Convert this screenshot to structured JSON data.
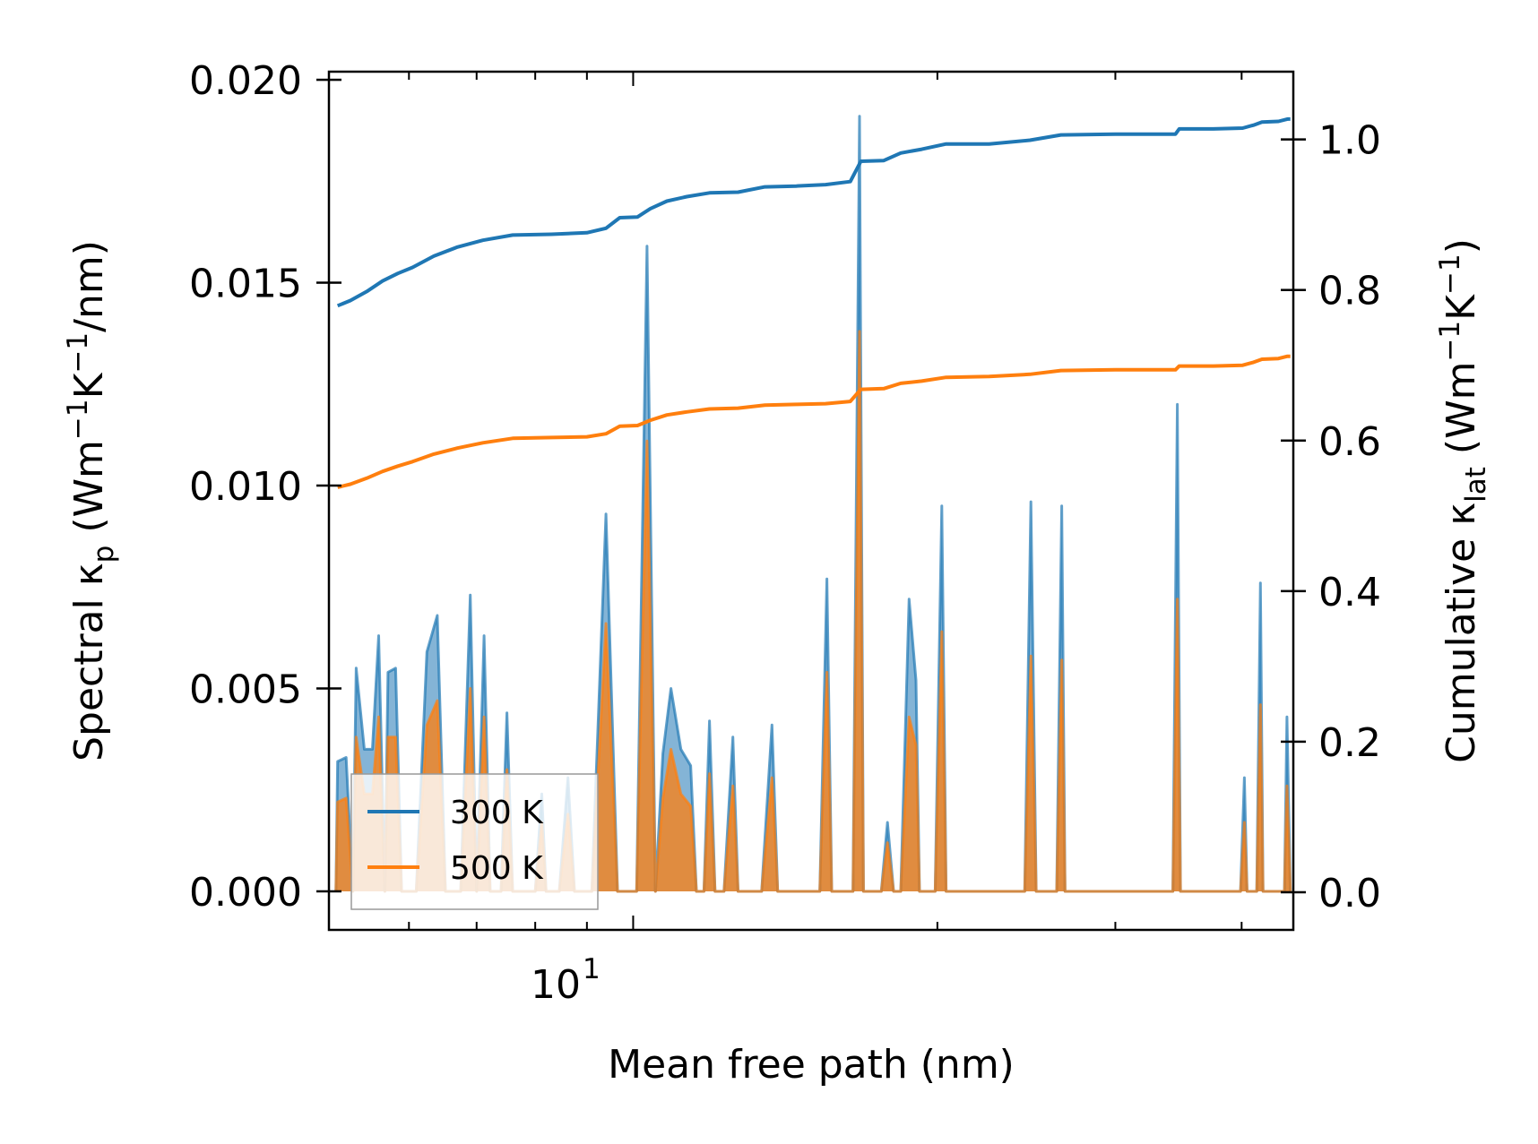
{
  "chart_data": {
    "type": "line",
    "x_scale": "log",
    "xlabel": "Mean free path (nm)",
    "ylabel_left": {
      "prefix": "Spectral κ",
      "sub": "p",
      "units_open": " (Wm",
      "exp1": "−1",
      "mid": "K",
      "exp2": "−1",
      "units_close": "/nm)"
    },
    "ylabel_right": {
      "prefix": "Cumulative κ",
      "sub": "lat",
      "units_open": " (Wm",
      "exp1": "−1",
      "mid": "K",
      "exp2": "−1",
      "units_close": ")"
    },
    "xlim": [
      5.0,
      45.0
    ],
    "ylim_left": [
      -0.00095,
      0.0202
    ],
    "ylim_right": [
      -0.05,
      1.09
    ],
    "x_tick_label": {
      "base": "10",
      "exp": "1",
      "value": 10
    },
    "y_left_ticks": [
      0.0,
      0.005,
      0.01,
      0.015,
      0.02
    ],
    "y_left_tick_labels": [
      "0.000",
      "0.005",
      "0.010",
      "0.015",
      "0.020"
    ],
    "y_right_ticks": [
      0.0,
      0.2,
      0.4,
      0.6,
      0.8,
      1.0
    ],
    "y_right_tick_labels": [
      "0.0",
      "0.2",
      "0.4",
      "0.6",
      "0.8",
      "1.0"
    ],
    "legend": {
      "position": "lower-left",
      "entries": [
        "300 K",
        "500 K"
      ]
    },
    "colors": {
      "series_300K": "#1f77b4",
      "series_500K": "#ff7f0e"
    },
    "series": [
      {
        "name": "300 K",
        "role": "spectral",
        "axis": "left",
        "points": [
          [
            5.08,
            0.0
          ],
          [
            5.1,
            0.0032
          ],
          [
            5.2,
            0.0033
          ],
          [
            5.28,
            0.0
          ],
          [
            5.32,
            0.0055
          ],
          [
            5.42,
            0.0035
          ],
          [
            5.52,
            0.0035
          ],
          [
            5.6,
            0.0063
          ],
          [
            5.68,
            0.0
          ],
          [
            5.72,
            0.0054
          ],
          [
            5.82,
            0.0055
          ],
          [
            5.9,
            0.0
          ],
          [
            6.1,
            0.0
          ],
          [
            6.25,
            0.0059
          ],
          [
            6.4,
            0.0068
          ],
          [
            6.52,
            0.0
          ],
          [
            6.62,
            0.0
          ],
          [
            6.75,
            0.0
          ],
          [
            6.9,
            0.0073
          ],
          [
            7.0,
            0.0
          ],
          [
            7.12,
            0.0063
          ],
          [
            7.22,
            0.0
          ],
          [
            7.4,
            0.0
          ],
          [
            7.5,
            0.0044
          ],
          [
            7.6,
            0.0
          ],
          [
            7.8,
            0.0
          ],
          [
            8.0,
            0.0
          ],
          [
            8.12,
            0.0024
          ],
          [
            8.2,
            0.0
          ],
          [
            8.45,
            0.0
          ],
          [
            8.62,
            0.0028
          ],
          [
            8.75,
            0.0
          ],
          [
            9.1,
            0.0
          ],
          [
            9.4,
            0.0093
          ],
          [
            9.65,
            0.0
          ],
          [
            10.08,
            0.0
          ],
          [
            10.32,
            0.0159
          ],
          [
            10.52,
            0.0
          ],
          [
            10.7,
            0.0034
          ],
          [
            10.9,
            0.005
          ],
          [
            11.15,
            0.0035
          ],
          [
            11.4,
            0.0031
          ],
          [
            11.55,
            0.0
          ],
          [
            11.75,
            0.0
          ],
          [
            11.9,
            0.0042
          ],
          [
            12.05,
            0.0
          ],
          [
            12.3,
            0.0
          ],
          [
            12.55,
            0.0038
          ],
          [
            12.7,
            0.0
          ],
          [
            13.4,
            0.0
          ],
          [
            13.72,
            0.0041
          ],
          [
            13.9,
            0.0
          ],
          [
            15.3,
            0.0
          ],
          [
            15.55,
            0.0077
          ],
          [
            15.72,
            0.0
          ],
          [
            16.5,
            0.0
          ],
          [
            16.75,
            0.0191
          ],
          [
            16.9,
            0.0
          ],
          [
            17.6,
            0.0
          ],
          [
            17.85,
            0.0017
          ],
          [
            18.1,
            0.0
          ],
          [
            18.4,
            0.0
          ],
          [
            18.75,
            0.0072
          ],
          [
            19.05,
            0.0052
          ],
          [
            19.2,
            0.0
          ],
          [
            19.9,
            0.0
          ],
          [
            20.2,
            0.0095
          ],
          [
            20.4,
            0.0
          ],
          [
            24.4,
            0.0
          ],
          [
            24.75,
            0.0096
          ],
          [
            25.05,
            0.0
          ],
          [
            26.25,
            0.0
          ],
          [
            26.55,
            0.0095
          ],
          [
            26.75,
            0.0
          ],
          [
            34.2,
            0.0
          ],
          [
            34.55,
            0.012
          ],
          [
            34.8,
            0.0
          ],
          [
            39.9,
            0.0
          ],
          [
            40.25,
            0.0028
          ],
          [
            40.5,
            0.0
          ],
          [
            41.4,
            0.0
          ],
          [
            41.75,
            0.0076
          ],
          [
            42.0,
            0.0
          ],
          [
            44.1,
            0.0
          ],
          [
            44.35,
            0.0043
          ],
          [
            44.7,
            0.0
          ]
        ]
      },
      {
        "name": "500 K",
        "role": "spectral",
        "axis": "left",
        "points": [
          [
            5.08,
            0.0
          ],
          [
            5.1,
            0.0022
          ],
          [
            5.2,
            0.0023
          ],
          [
            5.28,
            0.0
          ],
          [
            5.32,
            0.0038
          ],
          [
            5.42,
            0.0024
          ],
          [
            5.52,
            0.0024
          ],
          [
            5.6,
            0.0043
          ],
          [
            5.68,
            0.0
          ],
          [
            5.72,
            0.0038
          ],
          [
            5.82,
            0.0038
          ],
          [
            5.9,
            0.0
          ],
          [
            6.1,
            0.0
          ],
          [
            6.25,
            0.0041
          ],
          [
            6.4,
            0.0047
          ],
          [
            6.52,
            0.0
          ],
          [
            6.62,
            0.0
          ],
          [
            6.75,
            0.0
          ],
          [
            6.9,
            0.005
          ],
          [
            7.0,
            0.0
          ],
          [
            7.12,
            0.0043
          ],
          [
            7.22,
            0.0
          ],
          [
            7.4,
            0.0
          ],
          [
            7.5,
            0.003
          ],
          [
            7.6,
            0.0
          ],
          [
            7.8,
            0.0
          ],
          [
            8.0,
            0.0
          ],
          [
            8.12,
            0.0017
          ],
          [
            8.2,
            0.0
          ],
          [
            8.45,
            0.0
          ],
          [
            8.62,
            0.0019
          ],
          [
            8.75,
            0.0
          ],
          [
            9.1,
            0.0
          ],
          [
            9.4,
            0.0066
          ],
          [
            9.65,
            0.0
          ],
          [
            10.08,
            0.0
          ],
          [
            10.32,
            0.0111
          ],
          [
            10.52,
            0.0
          ],
          [
            10.7,
            0.0023
          ],
          [
            10.9,
            0.0035
          ],
          [
            11.15,
            0.0024
          ],
          [
            11.4,
            0.0021
          ],
          [
            11.55,
            0.0
          ],
          [
            11.75,
            0.0
          ],
          [
            11.9,
            0.0029
          ],
          [
            12.05,
            0.0
          ],
          [
            12.3,
            0.0
          ],
          [
            12.55,
            0.0026
          ],
          [
            12.7,
            0.0
          ],
          [
            13.4,
            0.0
          ],
          [
            13.72,
            0.0028
          ],
          [
            13.9,
            0.0
          ],
          [
            15.3,
            0.0
          ],
          [
            15.55,
            0.0054
          ],
          [
            15.72,
            0.0
          ],
          [
            16.5,
            0.0
          ],
          [
            16.75,
            0.0138
          ],
          [
            16.9,
            0.0
          ],
          [
            17.6,
            0.0
          ],
          [
            17.85,
            0.0012
          ],
          [
            18.1,
            0.0
          ],
          [
            18.4,
            0.0
          ],
          [
            18.75,
            0.0043
          ],
          [
            19.05,
            0.0036
          ],
          [
            19.2,
            0.0
          ],
          [
            19.9,
            0.0
          ],
          [
            20.2,
            0.0064
          ],
          [
            20.4,
            0.0
          ],
          [
            24.4,
            0.0
          ],
          [
            24.75,
            0.0058
          ],
          [
            25.05,
            0.0
          ],
          [
            26.25,
            0.0
          ],
          [
            26.55,
            0.0057
          ],
          [
            26.75,
            0.0
          ],
          [
            34.2,
            0.0
          ],
          [
            34.55,
            0.0072
          ],
          [
            34.8,
            0.0
          ],
          [
            39.9,
            0.0
          ],
          [
            40.25,
            0.0017
          ],
          [
            40.5,
            0.0
          ],
          [
            41.4,
            0.0
          ],
          [
            41.75,
            0.0046
          ],
          [
            42.0,
            0.0
          ],
          [
            44.1,
            0.0
          ],
          [
            44.35,
            0.0026
          ],
          [
            44.7,
            0.0
          ]
        ]
      },
      {
        "name": "300 K",
        "role": "cumulative",
        "axis": "right",
        "points": [
          [
            5.1,
            0.779
          ],
          [
            5.25,
            0.786
          ],
          [
            5.45,
            0.798
          ],
          [
            5.65,
            0.812
          ],
          [
            5.85,
            0.822
          ],
          [
            6.05,
            0.83
          ],
          [
            6.35,
            0.845
          ],
          [
            6.7,
            0.857
          ],
          [
            7.1,
            0.866
          ],
          [
            7.6,
            0.873
          ],
          [
            8.3,
            0.874
          ],
          [
            9.0,
            0.876
          ],
          [
            9.4,
            0.882
          ],
          [
            9.7,
            0.896
          ],
          [
            10.1,
            0.897
          ],
          [
            10.4,
            0.908
          ],
          [
            10.8,
            0.918
          ],
          [
            11.3,
            0.924
          ],
          [
            11.9,
            0.929
          ],
          [
            12.7,
            0.93
          ],
          [
            13.5,
            0.937
          ],
          [
            14.5,
            0.938
          ],
          [
            15.5,
            0.94
          ],
          [
            16.4,
            0.944
          ],
          [
            16.8,
            0.971
          ],
          [
            17.7,
            0.972
          ],
          [
            18.4,
            0.982
          ],
          [
            19.3,
            0.987
          ],
          [
            20.4,
            0.994
          ],
          [
            22.5,
            0.994
          ],
          [
            24.7,
            0.999
          ],
          [
            26.5,
            1.006
          ],
          [
            30.0,
            1.007
          ],
          [
            34.4,
            1.007
          ],
          [
            34.7,
            1.014
          ],
          [
            37.5,
            1.014
          ],
          [
            40.1,
            1.015
          ],
          [
            41.1,
            1.019
          ],
          [
            41.9,
            1.023
          ],
          [
            43.5,
            1.024
          ],
          [
            44.4,
            1.027
          ],
          [
            44.7,
            1.027
          ]
        ]
      },
      {
        "name": "500 K",
        "role": "cumulative",
        "axis": "right",
        "points": [
          [
            5.1,
            0.538
          ],
          [
            5.25,
            0.542
          ],
          [
            5.45,
            0.55
          ],
          [
            5.65,
            0.559
          ],
          [
            5.85,
            0.566
          ],
          [
            6.05,
            0.572
          ],
          [
            6.35,
            0.582
          ],
          [
            6.7,
            0.59
          ],
          [
            7.1,
            0.597
          ],
          [
            7.6,
            0.603
          ],
          [
            8.3,
            0.604
          ],
          [
            9.0,
            0.605
          ],
          [
            9.4,
            0.609
          ],
          [
            9.7,
            0.619
          ],
          [
            10.1,
            0.62
          ],
          [
            10.4,
            0.627
          ],
          [
            10.8,
            0.634
          ],
          [
            11.3,
            0.638
          ],
          [
            11.9,
            0.642
          ],
          [
            12.7,
            0.643
          ],
          [
            13.5,
            0.647
          ],
          [
            14.5,
            0.648
          ],
          [
            15.5,
            0.649
          ],
          [
            16.4,
            0.652
          ],
          [
            16.8,
            0.668
          ],
          [
            17.7,
            0.669
          ],
          [
            18.4,
            0.676
          ],
          [
            19.3,
            0.679
          ],
          [
            20.4,
            0.684
          ],
          [
            22.5,
            0.685
          ],
          [
            24.7,
            0.688
          ],
          [
            26.5,
            0.693
          ],
          [
            30.0,
            0.694
          ],
          [
            34.4,
            0.694
          ],
          [
            34.7,
            0.699
          ],
          [
            37.5,
            0.699
          ],
          [
            40.1,
            0.7
          ],
          [
            41.1,
            0.704
          ],
          [
            41.9,
            0.708
          ],
          [
            43.5,
            0.709
          ],
          [
            44.4,
            0.712
          ],
          [
            44.7,
            0.712
          ]
        ]
      }
    ]
  }
}
